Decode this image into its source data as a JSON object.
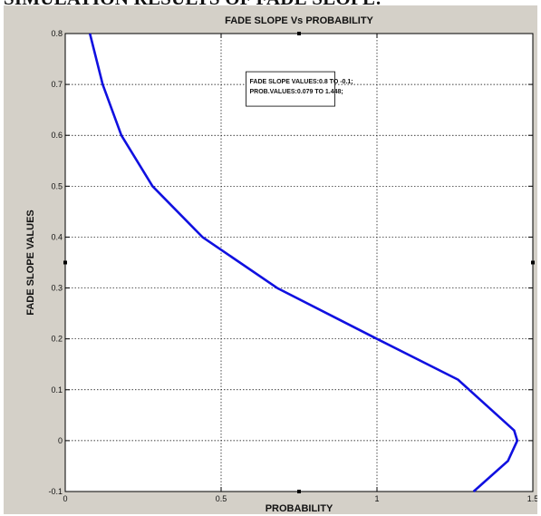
{
  "heading": "SIMULATION RESULTS OF FADE SLOPE:",
  "chart_data": {
    "type": "line",
    "title": "FADE SLOPE Vs PROBABILITY",
    "xlabel": "PROBABILITY",
    "ylabel": "FADE SLOPE VALUES",
    "xlim": [
      0,
      1.5
    ],
    "ylim": [
      -0.1,
      0.8
    ],
    "x_ticks": [
      "0",
      "0.5",
      "1",
      "1.5"
    ],
    "y_ticks": [
      "-0.1",
      "0",
      "0.1",
      "0.2",
      "0.3",
      "0.4",
      "0.5",
      "0.6",
      "0.7",
      "0.8"
    ],
    "grid": true,
    "line_color": "#1010e0",
    "series": [
      {
        "x": [
          0.079,
          0.12,
          0.18,
          0.28,
          0.44,
          0.68,
          1.0,
          1.26,
          1.44,
          1.45,
          1.42,
          1.31
        ],
        "y": [
          0.8,
          0.7,
          0.6,
          0.5,
          0.4,
          0.3,
          0.2,
          0.12,
          0.02,
          0.0,
          -0.04,
          -0.1
        ]
      }
    ],
    "annotation": {
      "lines": [
        "FADE SLOPE VALUES:0.8 TO -0.1;",
        "PROB.VALUES:0.079 TO 1.448;"
      ],
      "x": 0.58,
      "y": 0.725
    }
  }
}
